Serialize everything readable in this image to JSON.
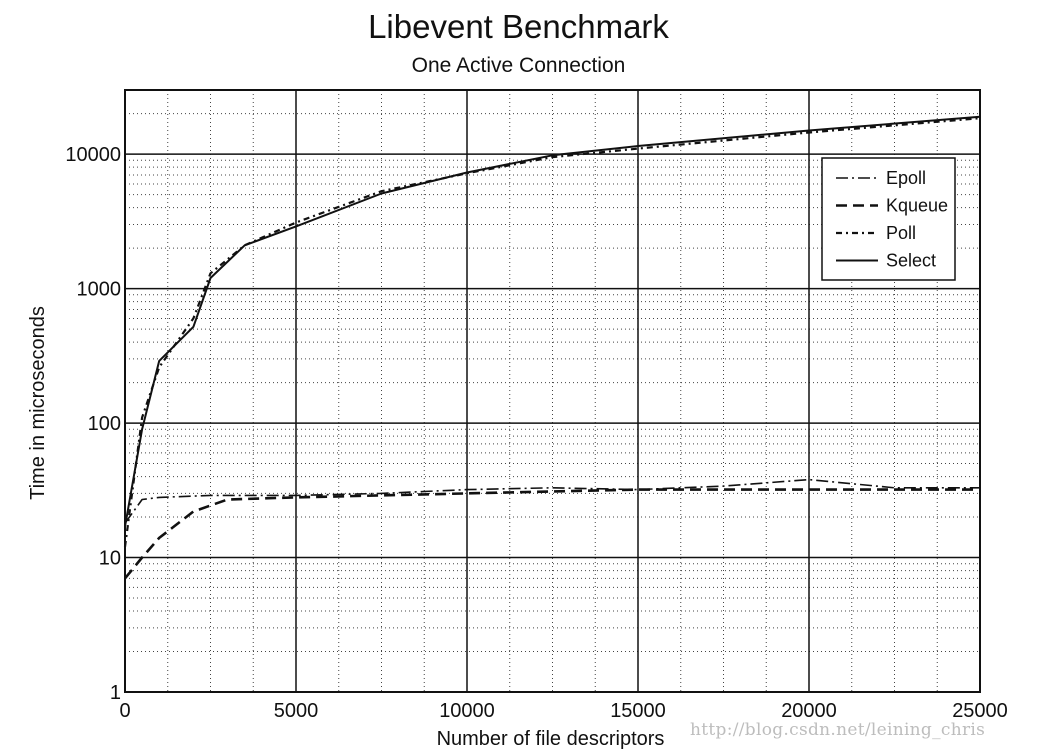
{
  "chart_data": {
    "type": "line",
    "title": "Libevent Benchmark",
    "subtitle": "One Active Connection",
    "xlabel": "Number of file descriptors",
    "ylabel": "Time in microseconds",
    "xlim": [
      0,
      25000
    ],
    "ylim": [
      1,
      30000
    ],
    "yscale": "log",
    "xticks": [
      0,
      5000,
      10000,
      15000,
      20000,
      25000
    ],
    "yticks": [
      1,
      10,
      100,
      1000,
      10000
    ],
    "grid": true,
    "legend_position": "top-right",
    "series": [
      {
        "name": "Epoll",
        "style": "dashdot",
        "x": [
          0,
          500,
          1000,
          2500,
          5000,
          7500,
          10000,
          12500,
          15000,
          17500,
          20000,
          22500,
          25000
        ],
        "y": [
          18,
          27,
          28,
          29,
          29,
          30,
          32,
          33,
          32,
          34,
          38,
          33,
          33
        ]
      },
      {
        "name": "Kqueue",
        "style": "dashed",
        "x": [
          0,
          500,
          1000,
          2000,
          3000,
          5000,
          7500,
          10000,
          15000,
          20000,
          25000
        ],
        "y": [
          7,
          10,
          14,
          22,
          27,
          28,
          29,
          30,
          32,
          32,
          32
        ]
      },
      {
        "name": "Poll",
        "style": "dotdash",
        "x": [
          0,
          500,
          1000,
          2000,
          2500,
          3500,
          5000,
          7500,
          10000,
          12500,
          15000,
          20000,
          25000
        ],
        "y": [
          12,
          110,
          260,
          600,
          1300,
          2100,
          3100,
          5300,
          7200,
          9500,
          11000,
          14500,
          18500
        ]
      },
      {
        "name": "Select",
        "style": "solid",
        "x": [
          0,
          500,
          1000,
          2000,
          2500,
          3500,
          5000,
          7500,
          10000,
          12500,
          15000,
          20000,
          25000
        ],
        "y": [
          17,
          90,
          290,
          520,
          1200,
          2100,
          2900,
          5100,
          7300,
          9800,
          11500,
          15000,
          19000
        ]
      }
    ]
  },
  "watermark": "http://blog.csdn.net/leining_chris"
}
